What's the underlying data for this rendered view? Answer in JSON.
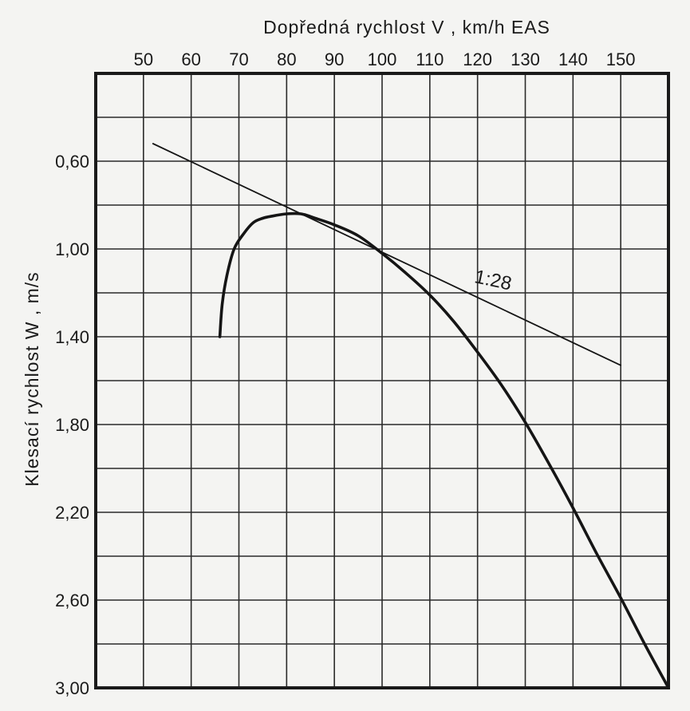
{
  "chart_data": {
    "type": "line",
    "xlabel": "Dopředná rychlost V , km/h EAS",
    "ylabel": "Klesací rychlost W , m/s",
    "x_ticks": [
      50,
      60,
      70,
      80,
      90,
      100,
      110,
      120,
      130,
      140,
      150
    ],
    "x_tick_labels": [
      "50",
      "60",
      "70",
      "80",
      "90",
      "100",
      "110",
      "120",
      "130",
      "140",
      "150"
    ],
    "y_ticks": [
      0.6,
      1.0,
      1.4,
      1.8,
      2.2,
      2.6,
      3.0
    ],
    "y_tick_labels": [
      "0,60",
      "1,00",
      "1,40",
      "1,80",
      "2,20",
      "2,60",
      "3,00"
    ],
    "xlim": [
      40,
      160
    ],
    "ylim": [
      0.2,
      3.0
    ],
    "y_inverted": true,
    "x_axis_position": "top",
    "grid": true,
    "grid_step": {
      "x": 10,
      "y": 0.2
    },
    "series": [
      {
        "style": "thick",
        "x": [
          66,
          66.5,
          67.5,
          69,
          71,
          73,
          75,
          77,
          80,
          83,
          86,
          90,
          95,
          100,
          105,
          110,
          115,
          120,
          125,
          130,
          135,
          140,
          145,
          150,
          155,
          160
        ],
        "y": [
          1.4,
          1.25,
          1.12,
          1.0,
          0.93,
          0.88,
          0.86,
          0.85,
          0.84,
          0.84,
          0.86,
          0.89,
          0.94,
          1.02,
          1.11,
          1.21,
          1.33,
          1.47,
          1.62,
          1.79,
          1.98,
          2.18,
          2.39,
          2.59,
          2.8,
          3.0
        ]
      },
      {
        "style": "thin",
        "x": [
          52,
          150
        ],
        "y": [
          0.52,
          1.53
        ]
      }
    ],
    "annotations": [
      {
        "text": "1:28",
        "x": 123,
        "y": 1.17
      }
    ]
  }
}
